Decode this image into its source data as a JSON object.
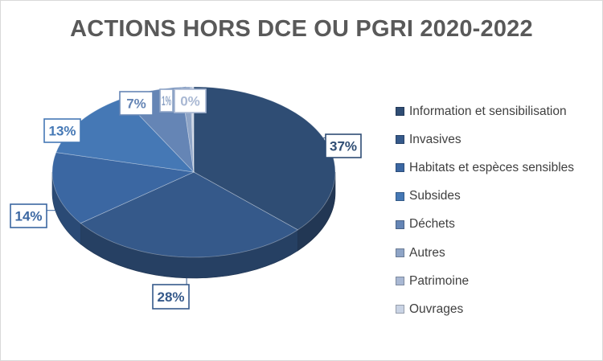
{
  "chart_data": {
    "type": "pie",
    "title": "ACTIONS HORS DCE OU PGRI 2020-2022",
    "categories": [
      "Information et sensibilisation",
      "Invasives",
      "Habitats et espèces sensibles",
      "Subsides",
      "Déchets",
      "Autres",
      "Patrimoine",
      "Ouvrages"
    ],
    "values": [
      37,
      28,
      14,
      13,
      7,
      1,
      0,
      0
    ],
    "data_labels": [
      "37%",
      "28%",
      "14%",
      "13%",
      "7%",
      "1%",
      "0%",
      "0%"
    ],
    "legend_position": "right",
    "colors": [
      "#2f4d74",
      "#35598a",
      "#3b67a2",
      "#4578b5",
      "#6585b5",
      "#8ea4c6",
      "#a9b8d3",
      "#c9d3e4"
    ]
  }
}
